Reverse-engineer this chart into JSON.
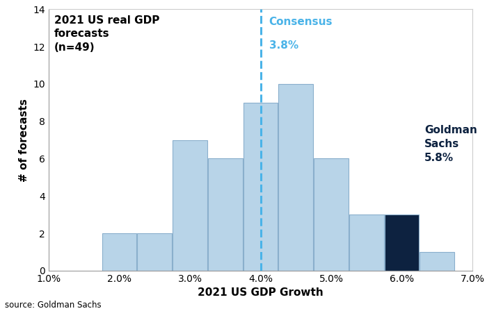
{
  "bar_centers": [
    2.0,
    2.5,
    3.0,
    3.5,
    4.0,
    4.5,
    5.0,
    5.5,
    6.0,
    6.5
  ],
  "bar_heights": [
    2,
    2,
    7,
    6,
    9,
    10,
    6,
    3,
    3,
    1
  ],
  "bar_width": 0.5,
  "bar_colors": [
    "#b8d4e8",
    "#b8d4e8",
    "#b8d4e8",
    "#b8d4e8",
    "#b8d4e8",
    "#b8d4e8",
    "#b8d4e8",
    "#b8d4e8",
    "#0d2240",
    "#b8d4e8"
  ],
  "bar_edgecolor": "#8aafcc",
  "consensus_x": 4.0,
  "consensus_label_line1": "Consensus",
  "consensus_label_line2": "3.8%",
  "consensus_color": "#4ab3e8",
  "goldman_x": 6.0,
  "goldman_label": "Goldman\nSachs\n5.8%",
  "goldman_color": "#0d2240",
  "title": "2021 US real GDP\nforecasts\n(n=49)",
  "xlabel": "2021 US GDP Growth",
  "ylabel": "# of forecasts",
  "xlim": [
    1.0,
    7.0
  ],
  "ylim": [
    0,
    14
  ],
  "xticks": [
    1.0,
    2.0,
    3.0,
    4.0,
    5.0,
    6.0,
    7.0
  ],
  "xtick_labels": [
    "1.0%",
    "2.0%",
    "3.0%",
    "4.0%",
    "5.0%",
    "6.0%",
    "7.0%"
  ],
  "yticks": [
    0,
    2,
    4,
    6,
    8,
    10,
    12,
    14
  ],
  "source_text": "source: Goldman Sachs",
  "background_color": "#ffffff",
  "title_fontsize": 11,
  "axis_label_fontsize": 11,
  "tick_fontsize": 10,
  "annotation_fontsize": 11
}
